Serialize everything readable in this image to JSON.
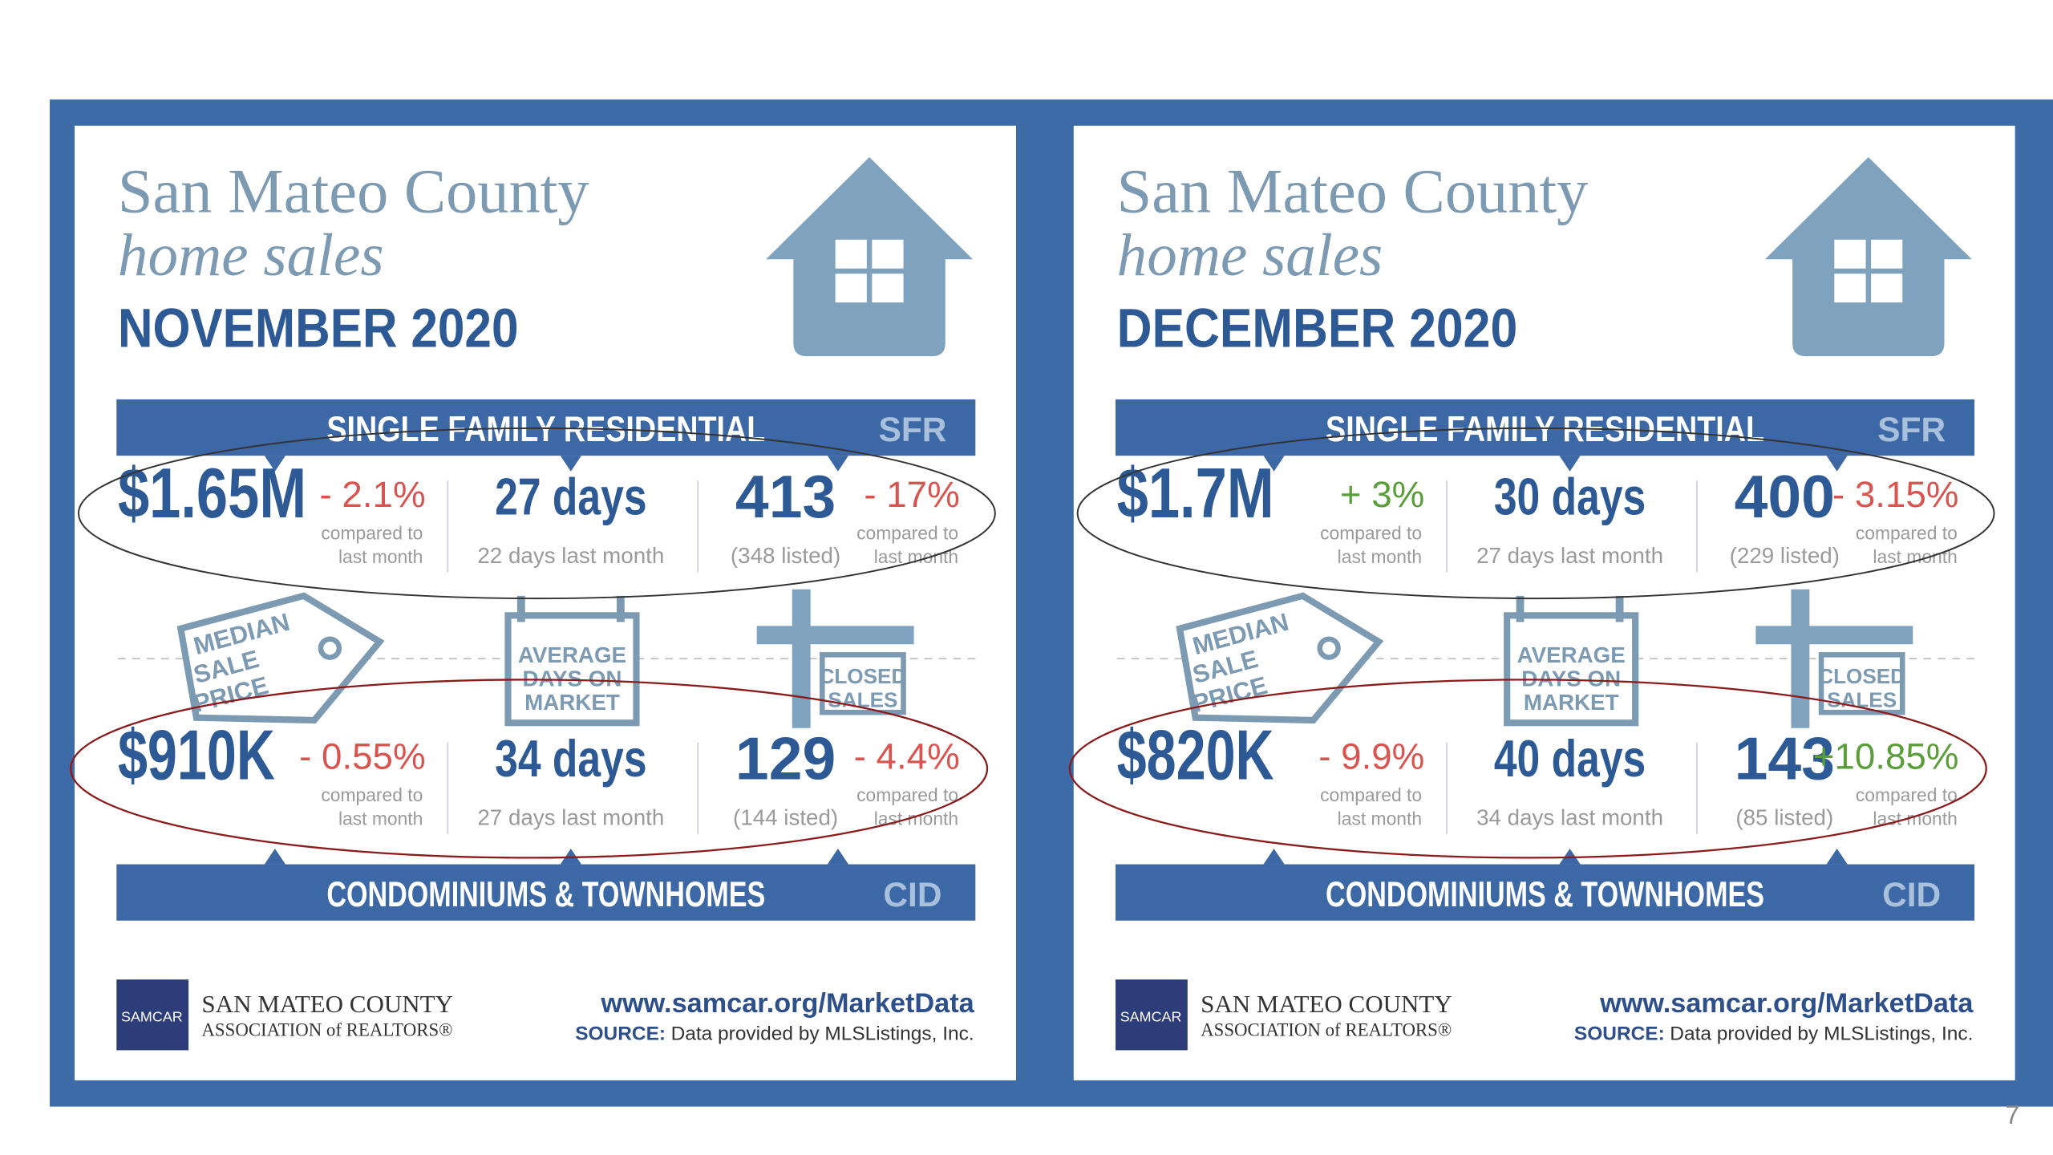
{
  "panels": [
    {
      "title_line1": "San Mateo County",
      "title_line2": "home sales",
      "month": "NOVEMBER 2020",
      "sfr_banner": "SINGLE FAMILY RESIDENTIAL",
      "sfr_abbr": "SFR",
      "sfr": {
        "price": "$1.65M",
        "price_change": "- 2.1%",
        "price_change_color": "#d9534f",
        "price_note1": "compared to",
        "price_note2": "last month",
        "days": "27 days",
        "days_note": "22 days last month",
        "sales": "413",
        "sales_listed": "(348 listed)",
        "sales_change": "- 17%",
        "sales_change_color": "#d9534f",
        "sales_note1": "compared to",
        "sales_note2": "last month"
      },
      "icons": {
        "price": [
          "MEDIAN",
          "SALE",
          "PRICE"
        ],
        "days": [
          "AVERAGE",
          "DAYS ON",
          "MARKET"
        ],
        "sales": [
          "CLOSED",
          "SALES"
        ]
      },
      "cid": {
        "price": "$910K",
        "price_change": "- 0.55%",
        "price_change_color": "#d9534f",
        "price_note1": "compared to",
        "price_note2": "last month",
        "days": "34 days",
        "days_note": "27 days last month",
        "sales": "129",
        "sales_listed": "(144 isted)",
        "sales_change": "- 4.4%",
        "sales_change_color": "#d9534f",
        "sales_note1": "compared to",
        "sales_note2": "last month"
      },
      "cid_banner": "CONDOMINIUMS & TOWNHOMES",
      "cid_abbr": "CID",
      "logo": "SAMCAR",
      "org1": "SAN MATEO COUNTY",
      "org2": "ASSOCIATION of REALTORS®",
      "url": "www.samcar.org/MarketData",
      "source_label": "SOURCE:",
      "source": "Data provided by MLSListings, Inc."
    },
    {
      "title_line1": "San Mateo County",
      "title_line2": "home sales",
      "month": "DECEMBER 2020",
      "sfr_banner": "SINGLE FAMILY RESIDENTIAL",
      "sfr_abbr": "SFR",
      "sfr": {
        "price": "$1.7M",
        "price_change": "+ 3%",
        "price_change_color": "#5a9e3a",
        "price_note1": "compared to",
        "price_note2": "last month",
        "days": "30 days",
        "days_note": "27 days last month",
        "sales": "400",
        "sales_listed": "(229 listed)",
        "sales_change": "- 3.15%",
        "sales_change_color": "#d9534f",
        "sales_note1": "compared to",
        "sales_note2": "last month"
      },
      "icons": {
        "price": [
          "MEDIAN",
          "SALE",
          "PRICE"
        ],
        "days": [
          "AVERAGE",
          "DAYS ON",
          "MARKET"
        ],
        "sales": [
          "CLOSED",
          "SALES"
        ]
      },
      "cid": {
        "price": "$820K",
        "price_change": "- 9.9%",
        "price_change_color": "#d9534f",
        "price_note1": "compared to",
        "price_note2": "last month",
        "days": "40 days",
        "days_note": "34 days last month",
        "sales": "143",
        "sales_listed": "(85 listed)",
        "sales_change": "+10.85%",
        "sales_change_color": "#5a9e3a",
        "sales_note1": "compared to",
        "sales_note2": "last month"
      },
      "cid_banner": "CONDOMINIUMS & TOWNHOMES",
      "cid_abbr": "CID",
      "logo": "SAMCAR",
      "org1": "SAN MATEO COUNTY",
      "org2": "ASSOCIATION of REALTORS®",
      "url": "www.samcar.org/MarketData",
      "source_label": "SOURCE:",
      "source": "Data provided by MLSListings, Inc."
    }
  ],
  "page_number": "7"
}
